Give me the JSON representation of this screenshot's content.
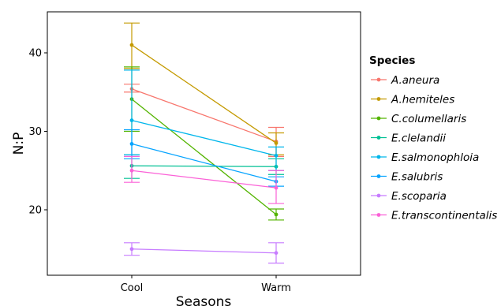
{
  "chart_data": {
    "type": "line",
    "xlabel": "Seasons",
    "ylabel": "N:P",
    "categories": [
      "Cool",
      "Warm"
    ],
    "ylim": [
      11,
      45
    ],
    "yticks": [
      20,
      30,
      40
    ],
    "grid": false,
    "legend": {
      "title": "Species",
      "placement": "right"
    },
    "series": [
      {
        "name": "A.aneura",
        "color": "#F8766D",
        "values": [
          35.4,
          28.7
        ],
        "error": [
          [
            35.0,
            36.0
          ],
          [
            26.8,
            30.5
          ]
        ]
      },
      {
        "name": "A.hemiteles",
        "color": "#C49A00",
        "values": [
          41.0,
          28.5
        ],
        "error": [
          [
            38.0,
            43.8
          ],
          [
            27.0,
            29.8
          ]
        ]
      },
      {
        "name": "C.columellaris",
        "color": "#53B400",
        "values": [
          34.1,
          19.4
        ],
        "error": [
          [
            30.0,
            38.2
          ],
          [
            18.7,
            20.1
          ]
        ]
      },
      {
        "name": "E.clelandii",
        "color": "#00C094",
        "values": [
          25.6,
          25.5
        ],
        "error": [
          [
            24.0,
            27.0
          ],
          [
            24.5,
            26.5
          ]
        ]
      },
      {
        "name": "E.salmonophloia",
        "color": "#00B6EB",
        "values": [
          31.4,
          26.9
        ],
        "error": [
          [
            27.0,
            37.8
          ],
          [
            25.0,
            28.0
          ]
        ]
      },
      {
        "name": "E.salubris",
        "color": "#06A4FF",
        "values": [
          28.4,
          23.6
        ],
        "error": [
          [
            26.5,
            30.2
          ],
          [
            23.0,
            24.2
          ]
        ]
      },
      {
        "name": "E.scoparia",
        "color": "#C77CFF",
        "values": [
          15.0,
          14.5
        ],
        "error": [
          [
            14.2,
            15.8
          ],
          [
            13.2,
            15.8
          ]
        ]
      },
      {
        "name": "E.transcontinentalis",
        "color": "#FB61D7",
        "values": [
          25.0,
          22.8
        ],
        "error": [
          [
            23.5,
            26.8
          ],
          [
            20.8,
            25.0
          ]
        ]
      }
    ]
  }
}
